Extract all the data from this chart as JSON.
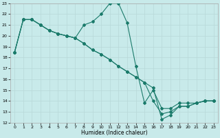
{
  "xlabel": "Humidex (Indice chaleur)",
  "bg_color": "#c8eaea",
  "grid_color": "#b8d8d8",
  "line_color": "#1a7a6a",
  "xlim": [
    -0.5,
    23.5
  ],
  "ylim": [
    12,
    23
  ],
  "line1_x": [
    0,
    1,
    2,
    3,
    4,
    5,
    6,
    7,
    8,
    9,
    10,
    11,
    12,
    13,
    14,
    15,
    16,
    17,
    18,
    19,
    20,
    21,
    22,
    23
  ],
  "line1_y": [
    18.5,
    21.5,
    21.5,
    21.0,
    20.5,
    20.2,
    20.0,
    19.8,
    21.0,
    21.3,
    22.0,
    23.0,
    23.0,
    21.2,
    17.2,
    13.8,
    15.0,
    13.3,
    13.3,
    13.8,
    13.8,
    13.8,
    14.0,
    14.0
  ],
  "line2_x": [
    0,
    1,
    2,
    3,
    4,
    5,
    6,
    7,
    8,
    9,
    10,
    11,
    12,
    13,
    14,
    15,
    16,
    17,
    18,
    19,
    20,
    21,
    22,
    23
  ],
  "line2_y": [
    18.5,
    21.5,
    21.5,
    21.0,
    20.5,
    20.2,
    20.0,
    19.8,
    19.3,
    18.7,
    18.3,
    17.8,
    17.2,
    16.7,
    16.2,
    15.7,
    15.2,
    12.3,
    12.7,
    13.5,
    13.5,
    13.8,
    14.0,
    14.0
  ],
  "line3_x": [
    0,
    1,
    2,
    3,
    4,
    5,
    6,
    7,
    8,
    9,
    10,
    11,
    12,
    13,
    14,
    15,
    16,
    17,
    18,
    19,
    20,
    21,
    22,
    23
  ],
  "line3_y": [
    18.5,
    21.5,
    21.5,
    21.0,
    20.5,
    20.2,
    20.0,
    19.8,
    19.3,
    18.7,
    18.3,
    17.8,
    17.2,
    16.7,
    16.2,
    15.7,
    14.0,
    12.8,
    13.0,
    13.5,
    13.5,
    13.8,
    14.0,
    14.0
  ]
}
